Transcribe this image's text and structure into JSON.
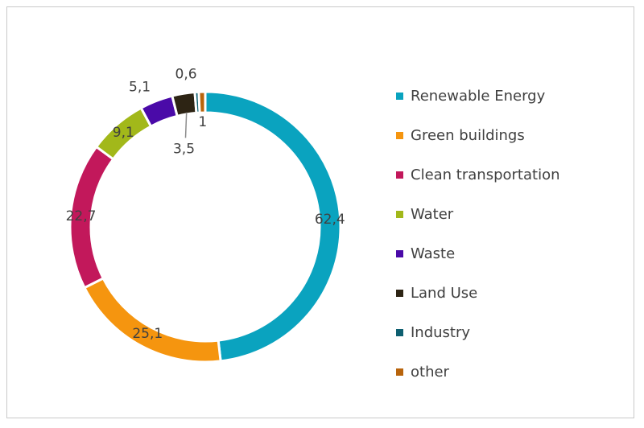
{
  "chart_data": {
    "type": "pie",
    "donut": true,
    "categories": [
      "Renewable Energy",
      "Green buildings",
      "Clean transportation",
      "Water",
      "Waste",
      "Land Use",
      "Industry",
      "other"
    ],
    "values": [
      62.4,
      25.1,
      22.7,
      9.1,
      5.1,
      3.5,
      0.6,
      1
    ],
    "data_labels": [
      "62,4",
      "25,1",
      "22,7",
      "9,1",
      "5,1",
      "3,5",
      "0,6",
      "1"
    ],
    "colors": [
      "#0aa3bf",
      "#f5950f",
      "#c2185b",
      "#a2b81a",
      "#4a0aa8",
      "#2d2414",
      "#0e5f70",
      "#b8640c"
    ],
    "legend_position": "right",
    "title": ""
  }
}
